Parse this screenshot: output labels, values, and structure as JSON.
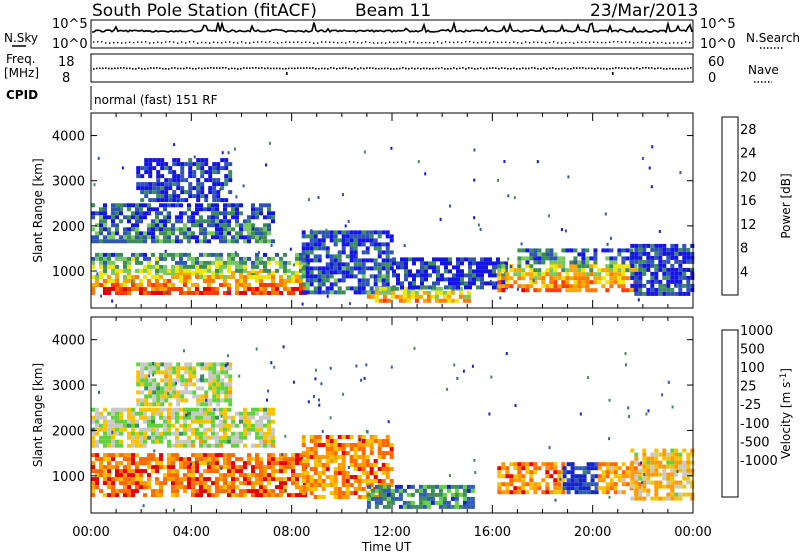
{
  "header": {
    "title": "South Pole Station (fitACF)",
    "beam": "Beam 11",
    "date": "23/Mar/2013"
  },
  "strips": {
    "nsky_label": "N.Sky",
    "nsearch_label": "N.Search",
    "noise_ticks": [
      "10^5",
      "10^0"
    ],
    "freq_label_1": "Freq.",
    "freq_label_2": "[MHz]",
    "freq_ticks": [
      "18",
      "8"
    ],
    "nave_label": "Nave",
    "nave_ticks": [
      "60",
      "0"
    ],
    "cpid_label": "CPID",
    "cpid_value": "normal (fast) 151 RF"
  },
  "colors": {
    "power_scale": [
      "#1414e6",
      "#2f55b4",
      "#3d8d5a",
      "#78c860",
      "#f0e600",
      "#f7a800",
      "#ff7800",
      "#ff3c00",
      "#e60000"
    ],
    "velocity_scale": [
      "#1424c8",
      "#2f5cb4",
      "#3d8d5a",
      "#5fd23c",
      "#c8c8c8",
      "#f5c300",
      "#ff9900",
      "#ff6a00",
      "#e60000"
    ]
  },
  "chart_data": [
    {
      "type": "heatmap",
      "panel": "power",
      "ylabel": "Slant Range [km]",
      "x_ticks": [
        "00:00",
        "04:00",
        "08:00",
        "12:00",
        "16:00",
        "20:00",
        "00:00"
      ],
      "y_ticks": [
        1000,
        2000,
        3000,
        4000
      ],
      "ylim": [
        180,
        4500
      ],
      "xlim_hours": [
        0,
        24
      ],
      "colorbar": {
        "label": "Power [dB]",
        "ticks": [
          4,
          8,
          12,
          16,
          20,
          24,
          28
        ],
        "range": [
          0,
          30
        ]
      },
      "regions": [
        {
          "t0": 0.0,
          "t1": 8.6,
          "r0": 550,
          "r1": 1000,
          "level": 0.85
        },
        {
          "t0": 0.0,
          "t1": 8.6,
          "r0": 1000,
          "r1": 1400,
          "level": 0.45
        },
        {
          "t0": 0.0,
          "t1": 7.2,
          "r0": 1700,
          "r1": 2500,
          "level": 0.25
        },
        {
          "t0": 1.8,
          "t1": 5.6,
          "r0": 2600,
          "r1": 3500,
          "level": 0.12
        },
        {
          "t0": 8.4,
          "t1": 12.0,
          "r0": 500,
          "r1": 1900,
          "level": 0.2
        },
        {
          "t0": 11.0,
          "t1": 15.2,
          "r0": 350,
          "r1": 650,
          "level": 0.72
        },
        {
          "t0": 12.0,
          "t1": 16.5,
          "r0": 600,
          "r1": 1300,
          "level": 0.12
        },
        {
          "t0": 16.2,
          "t1": 21.8,
          "r0": 600,
          "r1": 1150,
          "level": 0.75
        },
        {
          "t0": 17.0,
          "t1": 21.5,
          "r0": 1150,
          "r1": 1500,
          "level": 0.3
        },
        {
          "t0": 21.5,
          "t1": 24.0,
          "r0": 500,
          "r1": 1600,
          "level": 0.15
        }
      ]
    },
    {
      "type": "heatmap",
      "panel": "velocity",
      "ylabel": "Slant Range [km]",
      "xlabel": "Time UT",
      "x_ticks": [
        "00:00",
        "04:00",
        "08:00",
        "12:00",
        "16:00",
        "20:00",
        "00:00"
      ],
      "y_ticks": [
        1000,
        2000,
        3000,
        4000
      ],
      "ylim": [
        180,
        4500
      ],
      "xlim_hours": [
        0,
        24
      ],
      "colorbar": {
        "label": "Velocity [m s^-1]",
        "ticks": [
          1000,
          500,
          100,
          25,
          -25,
          -100,
          -500,
          -1000
        ]
      },
      "regions": [
        {
          "t0": 0.0,
          "t1": 8.6,
          "r0": 550,
          "r1": 1500,
          "level": 0.8
        },
        {
          "t0": 0.0,
          "t1": 7.2,
          "r0": 1700,
          "r1": 2500,
          "level": 0.5
        },
        {
          "t0": 1.8,
          "t1": 5.6,
          "r0": 2600,
          "r1": 3500,
          "level": 0.5
        },
        {
          "t0": 8.4,
          "t1": 12.0,
          "r0": 500,
          "r1": 1900,
          "level": 0.75
        },
        {
          "t0": 11.0,
          "t1": 15.2,
          "r0": 350,
          "r1": 800,
          "level": 0.25
        },
        {
          "t0": 16.2,
          "t1": 18.8,
          "r0": 600,
          "r1": 1300,
          "level": 0.75
        },
        {
          "t0": 18.8,
          "t1": 20.2,
          "r0": 600,
          "r1": 1300,
          "level": 0.05
        },
        {
          "t0": 20.2,
          "t1": 21.8,
          "r0": 600,
          "r1": 1300,
          "level": 0.7
        },
        {
          "t0": 21.5,
          "t1": 24.0,
          "r0": 500,
          "r1": 1600,
          "level": 0.6
        }
      ]
    }
  ]
}
